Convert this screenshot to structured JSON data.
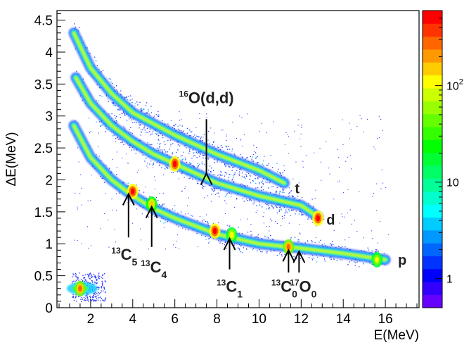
{
  "chart_data": {
    "type": "heatmap",
    "title": "",
    "xlabel": "E(MeV)",
    "ylabel": "ΔE(MeV)",
    "xlim": [
      0.4,
      17.6
    ],
    "ylim": [
      0,
      4.65
    ],
    "x_ticks": [
      {
        "value": 2,
        "label": "2"
      },
      {
        "value": 4,
        "label": "4"
      },
      {
        "value": 6,
        "label": "6"
      },
      {
        "value": 8,
        "label": "8"
      },
      {
        "value": 10,
        "label": "10"
      },
      {
        "value": 12,
        "label": "12"
      },
      {
        "value": 14,
        "label": "14"
      },
      {
        "value": 16,
        "label": "16"
      }
    ],
    "y_ticks": [
      {
        "value": 0,
        "label": "0"
      },
      {
        "value": 0.5,
        "label": "0.5"
      },
      {
        "value": 1,
        "label": "1"
      },
      {
        "value": 1.5,
        "label": "1.5"
      },
      {
        "value": 2,
        "label": "2"
      },
      {
        "value": 2.5,
        "label": "2.5"
      },
      {
        "value": 3,
        "label": "3"
      },
      {
        "value": 3.5,
        "label": "3.5"
      },
      {
        "value": 4,
        "label": "4"
      },
      {
        "value": 4.5,
        "label": "4.5"
      }
    ],
    "colorbar": {
      "scale": "log",
      "range": [
        0.5,
        600
      ],
      "colors": [
        "#6600ff",
        "#3300ff",
        "#0000ff",
        "#0033ff",
        "#0066ff",
        "#0099ff",
        "#00ccff",
        "#00ffff",
        "#00ffcc",
        "#00ff99",
        "#00ff66",
        "#00ff33",
        "#00ff00",
        "#33ff00",
        "#66ff00",
        "#99ff00",
        "#ccff00",
        "#ffff00",
        "#ffcc00",
        "#ff9900",
        "#ff6600",
        "#ff3300",
        "#ff0000"
      ],
      "ticks": [
        {
          "value": 1,
          "label": "1"
        },
        {
          "value": 10,
          "label": "10"
        },
        {
          "value": 100,
          "label": "10",
          "sup": "2"
        }
      ]
    },
    "loci": [
      {
        "particle": "p",
        "label": "p",
        "label_at": [
          16.6,
          0.75
        ],
        "ridge": [
          [
            1.2,
            2.85
          ],
          [
            2,
            2.35
          ],
          [
            3,
            2.0
          ],
          [
            4,
            1.75
          ],
          [
            5,
            1.55
          ],
          [
            6,
            1.4
          ],
          [
            8,
            1.15
          ],
          [
            10,
            1.0
          ],
          [
            12,
            0.93
          ],
          [
            14,
            0.85
          ],
          [
            16,
            0.75
          ]
        ]
      },
      {
        "particle": "d",
        "label": "d",
        "label_at": [
          13.2,
          1.38
        ],
        "ridge": [
          [
            1.3,
            3.6
          ],
          [
            2,
            3.2
          ],
          [
            3,
            2.85
          ],
          [
            4,
            2.6
          ],
          [
            5,
            2.4
          ],
          [
            6,
            2.25
          ],
          [
            8,
            1.95
          ],
          [
            10,
            1.75
          ],
          [
            12,
            1.6
          ],
          [
            12.8,
            1.42
          ]
        ]
      },
      {
        "particle": "t",
        "label": "t",
        "label_at": [
          11.7,
          1.87
        ],
        "ridge": [
          [
            1.2,
            4.3
          ],
          [
            2,
            3.75
          ],
          [
            3,
            3.35
          ],
          [
            4,
            3.05
          ],
          [
            6,
            2.7
          ],
          [
            8,
            2.4
          ],
          [
            10,
            2.15
          ],
          [
            11.2,
            1.95
          ]
        ]
      }
    ],
    "hot_spots": [
      {
        "x": 4.0,
        "y": 1.82,
        "intensity": 600
      },
      {
        "x": 4.9,
        "y": 1.62,
        "intensity": 150
      },
      {
        "x": 6.0,
        "y": 2.25,
        "intensity": 600
      },
      {
        "x": 7.9,
        "y": 1.2,
        "intensity": 600
      },
      {
        "x": 8.7,
        "y": 1.14,
        "intensity": 120
      },
      {
        "x": 11.4,
        "y": 0.95,
        "intensity": 300
      },
      {
        "x": 12.8,
        "y": 1.4,
        "intensity": 600
      },
      {
        "x": 15.6,
        "y": 0.75,
        "intensity": 100
      },
      {
        "x": 1.5,
        "y": 0.3,
        "intensity": 300
      }
    ],
    "annotations": [
      {
        "pre": "16",
        "main": "O(d,d)",
        "sub": "",
        "text_at": [
          7.5,
          3.2
        ],
        "arrow_from": [
          7.5,
          2.95
        ],
        "arrow_to": [
          7.5,
          2.1
        ]
      },
      {
        "pre": "13",
        "main": "C",
        "sub": "5",
        "text_at": [
          3.6,
          0.75
        ],
        "arrow_from": [
          3.8,
          1.1
        ],
        "arrow_to": [
          3.8,
          1.78
        ]
      },
      {
        "pre": "13",
        "main": "C",
        "sub": "4",
        "text_at": [
          5.0,
          0.55
        ],
        "arrow_from": [
          4.9,
          0.95
        ],
        "arrow_to": [
          4.9,
          1.58
        ]
      },
      {
        "pre": "13",
        "main": "C",
        "sub": "1",
        "text_at": [
          8.6,
          0.25
        ],
        "arrow_from": [
          8.6,
          0.6
        ],
        "arrow_to": [
          8.6,
          1.08
        ]
      },
      {
        "pre": "13",
        "main": "C",
        "sub": "0",
        "text_at": [
          11.2,
          0.25
        ],
        "arrow_from": [
          11.4,
          0.55
        ],
        "arrow_to": [
          11.4,
          0.9
        ]
      },
      {
        "pre": "17",
        "main": "O",
        "sub": "0",
        "text_at": [
          12.1,
          0.25
        ],
        "arrow_from": [
          11.9,
          0.55
        ],
        "arrow_to": [
          11.9,
          0.88
        ]
      }
    ]
  }
}
